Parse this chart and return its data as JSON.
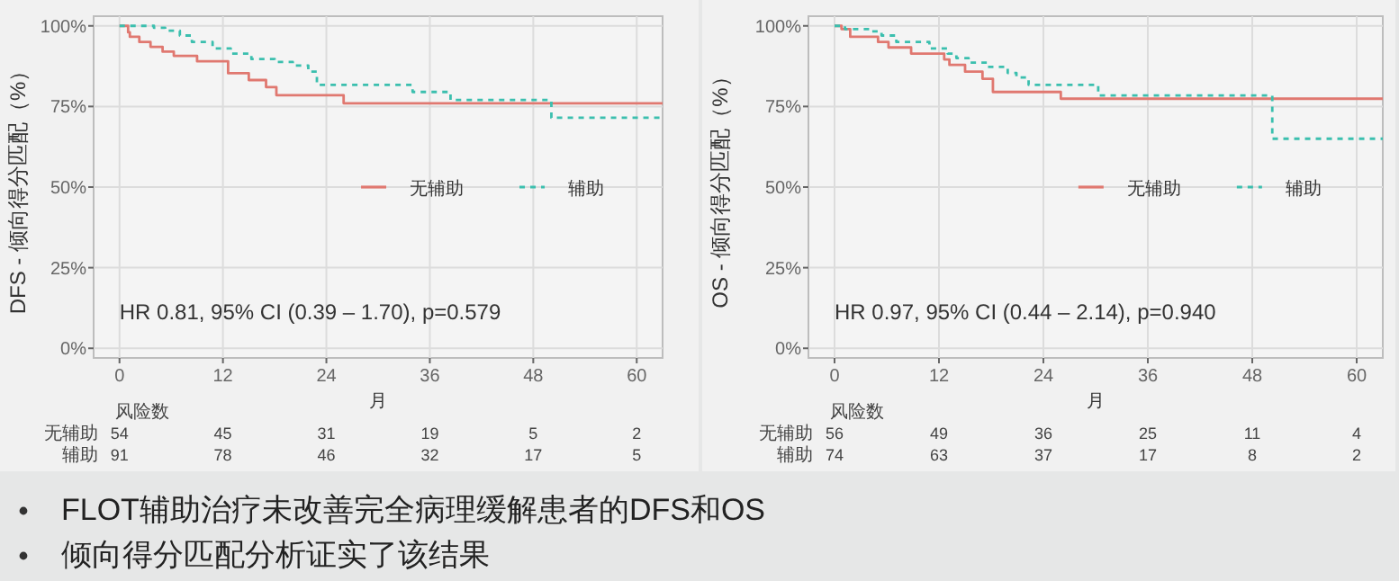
{
  "chart_data": [
    {
      "type": "step",
      "ylabel": "DFS - 倾向得分匹配（%）",
      "xlabel": "月",
      "xlim": [
        -3,
        63
      ],
      "ylim": [
        -3,
        103
      ],
      "xticks": [
        0,
        12,
        24,
        36,
        48,
        60
      ],
      "yticks": [
        {
          "value": 0,
          "label": "0%"
        },
        {
          "value": 25,
          "label": "25%"
        },
        {
          "value": 50,
          "label": "50%"
        },
        {
          "value": 75,
          "label": "75%"
        },
        {
          "value": 100,
          "label": "100%"
        }
      ],
      "grid": true,
      "legend": "center right",
      "series": [
        {
          "name": "无辅助",
          "color": "#e07870",
          "line_style": "solid",
          "x": [
            0,
            1,
            1.2,
            2.3,
            3.6,
            5,
            6.3,
            9,
            12.6,
            15,
            17,
            18.2,
            26,
            63
          ],
          "values": [
            100,
            98,
            96.6,
            95,
            93.5,
            92,
            90.7,
            89,
            85.3,
            83.2,
            81,
            78.5,
            76,
            76
          ]
        },
        {
          "name": "辅助",
          "color": "#3bbfae",
          "line_style": "dashed",
          "x": [
            0,
            4,
            5.3,
            7,
            8.4,
            10.8,
            12.9,
            15.3,
            18,
            20.1,
            21.9,
            22.9,
            34,
            38.4,
            50.1,
            63
          ],
          "values": [
            100,
            99.4,
            98.5,
            97,
            95,
            93,
            91.4,
            89.7,
            88.8,
            87.7,
            85.8,
            81.7,
            79.5,
            77,
            71.5,
            71.5
          ]
        }
      ],
      "annotations": [
        "HR 0.81, 95% CI (0.39 – 1.70), p=0.579",
        "风险数",
        "无辅助",
        "辅助",
        "54",
        "45",
        "31",
        "19",
        "5",
        "2",
        "91",
        "78",
        "46",
        "32",
        "17",
        "5"
      ]
    },
    {
      "type": "step",
      "ylabel": "OS - 倾向得分匹配（%）",
      "xlabel": "月",
      "xlim": [
        -3,
        63
      ],
      "ylim": [
        -3,
        103
      ],
      "xticks": [
        0,
        12,
        24,
        36,
        48,
        60
      ],
      "yticks": [
        {
          "value": 0,
          "label": "0%"
        },
        {
          "value": 25,
          "label": "25%"
        },
        {
          "value": 50,
          "label": "50%"
        },
        {
          "value": 75,
          "label": "75%"
        },
        {
          "value": 100,
          "label": "100%"
        }
      ],
      "grid": true,
      "legend": "center right",
      "series": [
        {
          "name": "无辅助",
          "color": "#e07870",
          "line_style": "solid",
          "x": [
            0,
            0.8,
            1.8,
            5,
            6.2,
            8.8,
            12.6,
            13.2,
            15,
            17,
            18.2,
            26,
            63
          ],
          "values": [
            100,
            99,
            96.6,
            95,
            93.3,
            91.4,
            89.6,
            87.9,
            85.8,
            83.6,
            79.5,
            77.4,
            77.4
          ]
        },
        {
          "name": "辅助",
          "color": "#3bbfae",
          "line_style": "dashed",
          "x": [
            0,
            1.2,
            4,
            5.4,
            7.1,
            10.9,
            13,
            14,
            15.4,
            17.5,
            19.9,
            20.9,
            22.3,
            30.3,
            50.3,
            63
          ],
          "values": [
            100,
            99,
            98.3,
            97,
            95,
            93,
            91.4,
            90,
            88.6,
            87.3,
            85.4,
            84,
            81.7,
            78.4,
            65,
            65
          ]
        }
      ],
      "annotations": [
        "HR 0.97, 95% CI (0.44 – 2.14), p=0.940",
        "风险数",
        "无辅助",
        "辅助",
        "56",
        "49",
        "36",
        "25",
        "11",
        "4",
        "74",
        "63",
        "37",
        "17",
        "8",
        "2"
      ]
    },
    {
      "type": "other",
      "annotations": [
        "FLOT辅助治疗未改善完全病理缓解患者的DFS和OS",
        "倾向得分匹配分析证实了该结果"
      ]
    }
  ]
}
